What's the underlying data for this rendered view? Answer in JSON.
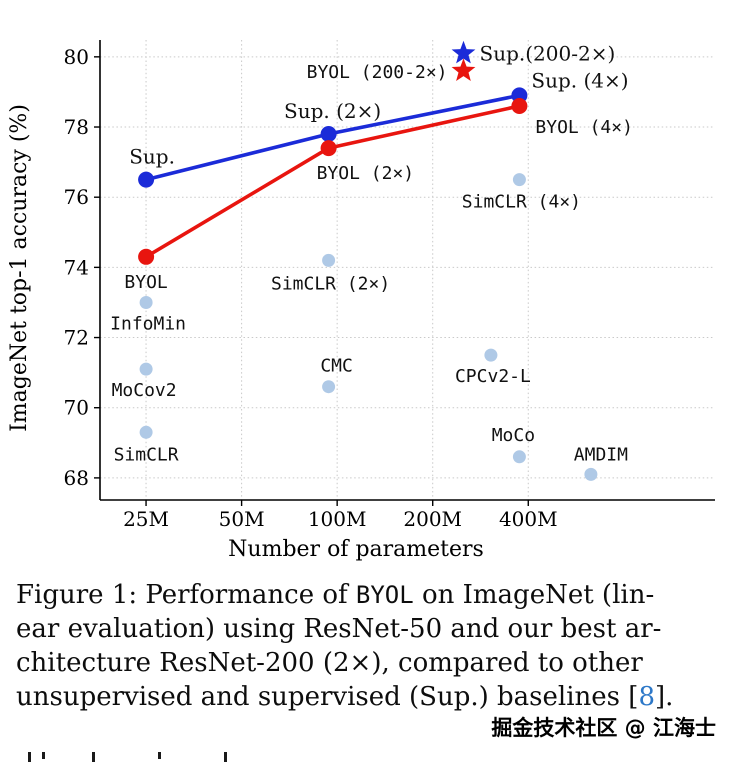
{
  "chart_data": {
    "type": "scatter",
    "title": "",
    "xlabel": "Number of parameters",
    "ylabel": "ImageNet top-1 accuracy (%)",
    "x_scale": "log2",
    "x_unit": "millions of parameters",
    "xlim": [
      17.9,
      1550
    ],
    "ylim": [
      67.37,
      80.48
    ],
    "grid": "dotted",
    "legend": "none",
    "x_ticks": [
      {
        "v": 25,
        "label": "25M"
      },
      {
        "v": 50,
        "label": "50M"
      },
      {
        "v": 100,
        "label": "100M"
      },
      {
        "v": 200,
        "label": "200M"
      },
      {
        "v": 400,
        "label": "400M"
      }
    ],
    "y_ticks": [
      68,
      70,
      72,
      74,
      76,
      78,
      80
    ],
    "colors": {
      "supervised": "#1b2bd8",
      "byol": "#e8150f",
      "others": "#afc9e6",
      "grid": "#c9c9c9",
      "axis": "#000000",
      "citation": "#2d78c8"
    },
    "series": [
      {
        "name": "Sup.",
        "color_key": "supervised",
        "marker": "circle",
        "line": true,
        "points": [
          {
            "x": 25,
            "y": 76.5,
            "label": "Sup.",
            "font": "serif",
            "anchor": "middle",
            "dx": 6,
            "dy": -16
          },
          {
            "x": 94,
            "y": 77.8,
            "label": "Sup. (2×)",
            "font": "serif",
            "anchor": "middle",
            "dx": 4,
            "dy": -16
          },
          {
            "x": 375,
            "y": 78.9,
            "label": "Sup. (4×)",
            "font": "serif",
            "anchor": "start",
            "dx": 12,
            "dy": -8
          }
        ]
      },
      {
        "name": "BYOL",
        "color_key": "byol",
        "marker": "circle",
        "line": true,
        "points": [
          {
            "x": 25,
            "y": 74.3,
            "label": "BYOL",
            "font": "mono",
            "anchor": "middle",
            "dx": 0,
            "dy": 31
          },
          {
            "x": 94,
            "y": 77.4,
            "label": "BYOL (2×)",
            "font": "mono",
            "anchor": "start",
            "dx": -12,
            "dy": 31
          },
          {
            "x": 375,
            "y": 78.6,
            "label": "BYOL (4×)",
            "font": "mono",
            "anchor": "start",
            "dx": 16,
            "dy": 27
          }
        ]
      },
      {
        "name": "Sup. (200-2×)",
        "color_key": "supervised",
        "marker": "star",
        "line": false,
        "points": [
          {
            "x": 250,
            "y": 80.1,
            "label": "Sup.(200-2×)",
            "font": "serif",
            "anchor": "start",
            "dx": 16,
            "dy": 7
          }
        ]
      },
      {
        "name": "BYOL (200-2×)",
        "color_key": "byol",
        "marker": "star",
        "line": false,
        "points": [
          {
            "x": 250,
            "y": 79.6,
            "label": "BYOL (200-2×)",
            "font": "mono",
            "anchor": "end",
            "dx": -16,
            "dy": 7
          }
        ]
      },
      {
        "name": "Other unsupervised baselines",
        "color_key": "others",
        "marker": "circle",
        "line": false,
        "points": [
          {
            "x": 25,
            "y": 73.0,
            "label": "InfoMin",
            "font": "mono",
            "anchor": "middle",
            "dx": 2,
            "dy": 27
          },
          {
            "x": 25,
            "y": 71.1,
            "label": "MoCov2",
            "font": "mono",
            "anchor": "middle",
            "dx": -2,
            "dy": 27
          },
          {
            "x": 25,
            "y": 69.3,
            "label": "SimCLR",
            "font": "mono",
            "anchor": "middle",
            "dx": 0,
            "dy": 28
          },
          {
            "x": 94,
            "y": 74.2,
            "label": "SimCLR (2×)",
            "font": "mono",
            "anchor": "middle",
            "dx": 2,
            "dy": 29
          },
          {
            "x": 94,
            "y": 70.6,
            "label": "CMC",
            "font": "mono",
            "anchor": "middle",
            "dx": 8,
            "dy": -15
          },
          {
            "x": 375,
            "y": 76.5,
            "label": "SimCLR (4×)",
            "font": "mono",
            "anchor": "middle",
            "dx": 2,
            "dy": 28
          },
          {
            "x": 305,
            "y": 71.5,
            "label": "CPCv2-L",
            "font": "mono",
            "anchor": "middle",
            "dx": 2,
            "dy": 27
          },
          {
            "x": 375,
            "y": 68.6,
            "label": "MoCo",
            "font": "mono",
            "anchor": "middle",
            "dx": -6,
            "dy": -16
          },
          {
            "x": 630,
            "y": 68.1,
            "label": "AMDIM",
            "font": "mono",
            "anchor": "middle",
            "dx": 10,
            "dy": -14
          }
        ]
      }
    ]
  },
  "caption": {
    "figure_label": "Figure 1",
    "lines": [
      [
        {
          "t": "Figure 1: Performance of ",
          "f": "serif"
        },
        {
          "t": "BYOL",
          "f": "mono"
        },
        {
          "t": " on ImageNet (lin-",
          "f": "serif"
        }
      ],
      [
        {
          "t": "ear evaluation) using ResNet-50 and our best ar-",
          "f": "serif"
        }
      ],
      [
        {
          "t": "chitecture ResNet-200 (2×), compared to other",
          "f": "serif"
        }
      ],
      [
        {
          "t": "unsupervised and supervised (Sup.) baselines [",
          "f": "serif"
        },
        {
          "t": "8",
          "f": "cite"
        },
        {
          "t": "].",
          "f": "serif"
        }
      ]
    ]
  },
  "watermark": "掘金技术社区 @ 江海士"
}
